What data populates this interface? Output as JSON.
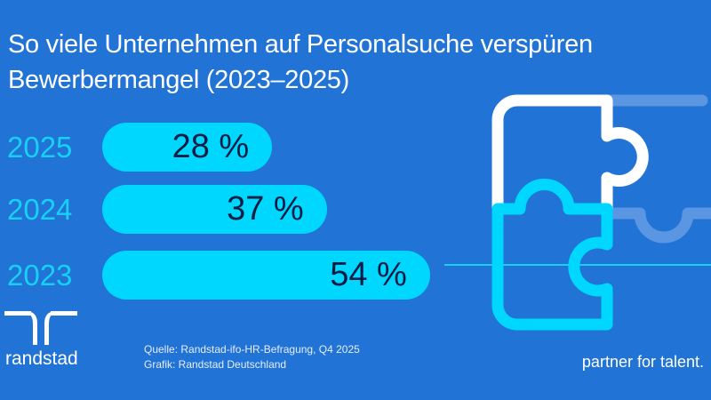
{
  "title_line1": "So viele Unternehmen auf Personalsuche verspüren",
  "title_line2": "Bewerbermangel (2023–2025)",
  "chart_data": {
    "type": "bar",
    "orientation": "horizontal",
    "title": "So viele Unternehmen auf Personalsuche verspüren Bewerbermangel (2023–2025)",
    "categories": [
      "2025",
      "2024",
      "2023"
    ],
    "values": [
      28,
      37,
      54
    ],
    "labels": [
      "28 %",
      "37 %",
      "54 %"
    ],
    "unit": "%",
    "xlim": [
      0,
      100
    ],
    "grid": false,
    "bar_color": "#00d7ff"
  },
  "footer": {
    "source": "Quelle: Randstad-ifo-HR-Befragung, Q4 2025",
    "graphic": "Grafik: Randstad Deutschland",
    "brand": "randstad",
    "tagline": "partner for talent."
  },
  "colors": {
    "background": "#2173d6",
    "accent": "#00d7ff",
    "text_dark": "#0b1d45"
  }
}
